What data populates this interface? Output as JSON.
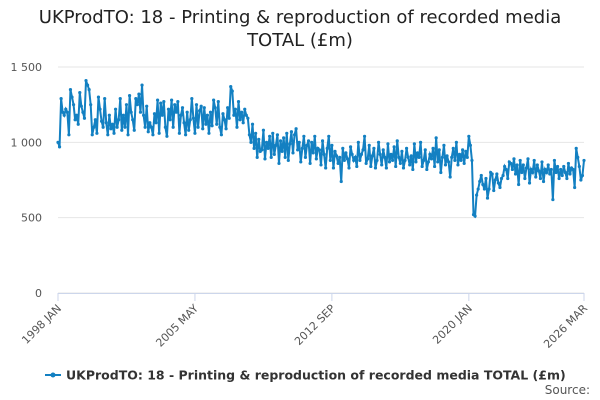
{
  "chart_data": {
    "type": "line",
    "title": "UKProdTO: 18 - Printing & reproduction of recorded media TOTAL (£m)",
    "source": "Source:",
    "ylim": [
      0,
      1500
    ],
    "yticks": [
      0,
      500,
      {
        "value": 1000,
        "label": "1 000"
      },
      {
        "value": 1500,
        "label": "1 500"
      }
    ],
    "grid": true,
    "categories": [
      "1998 JAN",
      null,
      null,
      null,
      null,
      null,
      null,
      null,
      null,
      null,
      null,
      null,
      null,
      null,
      null,
      null,
      null,
      null,
      null,
      null,
      null,
      null,
      null,
      null,
      null,
      null,
      null,
      null,
      null,
      null,
      null,
      null,
      null,
      null,
      null,
      null,
      null,
      null,
      null,
      null,
      null,
      null,
      null,
      null,
      null,
      null,
      null,
      null,
      null,
      null,
      null,
      null,
      null,
      null,
      null,
      null,
      null,
      null,
      null,
      null,
      null,
      null,
      null,
      null,
      null,
      null,
      null,
      null,
      null,
      null,
      null,
      null,
      null,
      null,
      null,
      null,
      null,
      null,
      null,
      null,
      null,
      null,
      null,
      null,
      null,
      null,
      null,
      null,
      "2005 MAY",
      null,
      null,
      null,
      null,
      null,
      null,
      null,
      null,
      null,
      null,
      null,
      null,
      null,
      null,
      null,
      null,
      null,
      null,
      null,
      null,
      null,
      null,
      null,
      null,
      null,
      null,
      null,
      null,
      null,
      null,
      null,
      null,
      null,
      null,
      null,
      null,
      null,
      null,
      null,
      null,
      null,
      null,
      null,
      null,
      null,
      null,
      null,
      null,
      null,
      null,
      null,
      null,
      null,
      null,
      null,
      null,
      null,
      null,
      null,
      null,
      null,
      null,
      null,
      null,
      null,
      null,
      null,
      null,
      null,
      null,
      null,
      null,
      null,
      null,
      null,
      null,
      null,
      null,
      null,
      null,
      null,
      null,
      null,
      null,
      null,
      null,
      null,
      "2012 SEP",
      null,
      null,
      null,
      null,
      null,
      null,
      null,
      null,
      null,
      null,
      null,
      null,
      null,
      null,
      null,
      null,
      null,
      null,
      null,
      null,
      null,
      null,
      null,
      null,
      null,
      null,
      null,
      null,
      null,
      null,
      null,
      null,
      null,
      null,
      null,
      null,
      null,
      null,
      null,
      null,
      null,
      null,
      null,
      null,
      null,
      null,
      null,
      null,
      null,
      null,
      null,
      null,
      null,
      null,
      null,
      null,
      null,
      null,
      null,
      null,
      null,
      null,
      null,
      null,
      null,
      null,
      null,
      null,
      null,
      null,
      null,
      null,
      null,
      null,
      null,
      null,
      null,
      null,
      null,
      null,
      null,
      null,
      null,
      null,
      null,
      null,
      null,
      "2020 JAN",
      null,
      null,
      null,
      null,
      null,
      null,
      null,
      null,
      null,
      null,
      null,
      null,
      null,
      null,
      null,
      null,
      null,
      null,
      null,
      null,
      null,
      null,
      null,
      null,
      null,
      null,
      null,
      null,
      null,
      null,
      null,
      null,
      null,
      null,
      null,
      null,
      null,
      null,
      null,
      null,
      null,
      null,
      null,
      null,
      null,
      null,
      null,
      null,
      null,
      null,
      null,
      null,
      null,
      null,
      null,
      null,
      null,
      null,
      null,
      null,
      null,
      null,
      null,
      null,
      null,
      null,
      null,
      null,
      null,
      null,
      null,
      null,
      null,
      "2026 MAR"
    ],
    "series": [
      {
        "name": "UKProdTO: 18 - Printing & reproduction of recorded media TOTAL (£m)",
        "color": "#1380c2",
        "values": [
          1000,
          970,
          1290,
          1200,
          1180,
          1220,
          1200,
          1050,
          1350,
          1300,
          1250,
          1150,
          1180,
          1120,
          1330,
          1240,
          1200,
          1160,
          1410,
          1380,
          1350,
          1250,
          1050,
          1100,
          1150,
          1060,
          1300,
          1220,
          1140,
          1100,
          1290,
          1130,
          1050,
          1180,
          1090,
          1120,
          1060,
          1220,
          1100,
          1150,
          1290,
          1080,
          1180,
          1100,
          1250,
          1050,
          1310,
          1200,
          1150,
          1080,
          1290,
          1250,
          1320,
          1200,
          1380,
          1180,
          1100,
          1240,
          1070,
          1130,
          1100,
          1050,
          1190,
          1130,
          1280,
          1060,
          1260,
          1180,
          1270,
          1100,
          1040,
          1220,
          1150,
          1280,
          1100,
          1250,
          1200,
          1270,
          1060,
          1180,
          1230,
          1130,
          1050,
          1200,
          1080,
          1150,
          1290,
          1160,
          1060,
          1250,
          1100,
          1210,
          1240,
          1090,
          1230,
          1120,
          1180,
          1060,
          1200,
          1110,
          1280,
          1230,
          1120,
          1270,
          1100,
          1050,
          1190,
          1150,
          1090,
          1230,
          1160,
          1370,
          1340,
          1180,
          1220,
          1100,
          1270,
          1150,
          1200,
          1130,
          1220,
          1180,
          1160,
          1050,
          1000,
          1120,
          960,
          1060,
          900,
          1020,
          940,
          950,
          1080,
          890,
          1000,
          960,
          1040,
          900,
          1060,
          920,
          980,
          1050,
          860,
          1010,
          940,
          1030,
          900,
          1060,
          880,
          990,
          1070,
          930,
          1050,
          1090,
          950,
          1000,
          870,
          960,
          1040,
          900,
          980,
          1010,
          860,
          1000,
          930,
          1040,
          890,
          960,
          950,
          850,
          1010,
          920,
          830,
          960,
          1040,
          880,
          980,
          830,
          940,
          910,
          860,
          900,
          740,
          960,
          880,
          930,
          890,
          830,
          970,
          920,
          880,
          900,
          840,
          1000,
          880,
          920,
          950,
          1040,
          860,
          890,
          980,
          840,
          910,
          960,
          830,
          880,
          1000,
          920,
          850,
          950,
          900,
          830,
          990,
          870,
          920,
          880,
          970,
          840,
          1010,
          900,
          860,
          940,
          830,
          880,
          960,
          900,
          850,
          910,
          820,
          990,
          870,
          930,
          900,
          1000,
          840,
          880,
          950,
          820,
          870,
          920,
          890,
          960,
          840,
          1030,
          870,
          950,
          800,
          900,
          980,
          850,
          910,
          870,
          770,
          900,
          960,
          880,
          1000,
          850,
          920,
          880,
          950,
          860,
          940,
          900,
          1040,
          980,
          880,
          520,
          510,
          650,
          690,
          740,
          780,
          720,
          690,
          760,
          630,
          690,
          800,
          790,
          680,
          750,
          790,
          730,
          700,
          760,
          780,
          840,
          820,
          760,
          870,
          860,
          820,
          890,
          790,
          850,
          720,
          880,
          800,
          850,
          760,
          830,
          890,
          730,
          820,
          800,
          880,
          770,
          850,
          810,
          760,
          870,
          740,
          820,
          800,
          850,
          790,
          820,
          620,
          880,
          800,
          840,
          760,
          820,
          780,
          840,
          800,
          760,
          860,
          790,
          830,
          820,
          700,
          960,
          900,
          840,
          750,
          780,
          880
        ]
      }
    ]
  }
}
